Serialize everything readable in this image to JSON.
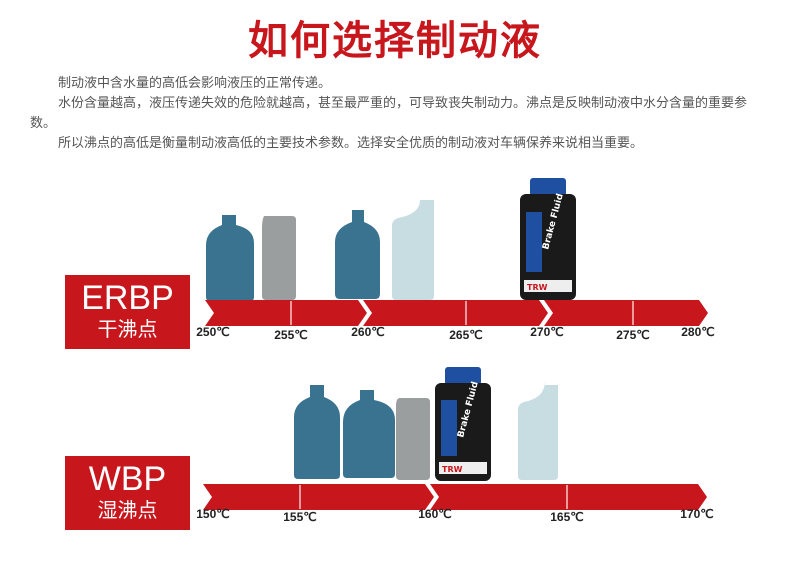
{
  "title": "如何选择制动液",
  "paragraphs": [
    "制动液中含水量的高低会影响液压的正常传递。",
    "水份含量越高，液压传递失效的危险就越高，甚至最严重的，可导致丧失制动力。沸点是反映制动液中水分含量的重要参数。",
    "所以沸点的高低是衡量制动液高低的主要技术参数。选择安全优质的制动液对车辆保养来说相当重要。"
  ],
  "erbp": {
    "label_en": "ERBP",
    "label_cn": "干沸点",
    "ticks": [
      "250℃",
      "255℃",
      "260℃",
      "265℃",
      "270℃",
      "275℃",
      "280℃"
    ]
  },
  "wbp": {
    "label_en": "WBP",
    "label_cn": "湿沸点",
    "ticks": [
      "150℃",
      "155℃",
      "160℃",
      "165℃",
      "170℃"
    ]
  },
  "product_label": "Brake Fluid",
  "brand": "TRW",
  "colors": {
    "accent": "#c8161d",
    "bottle_blue": "#3a7390",
    "bottle_gray": "#9a9e9f",
    "bottle_light": "#c7dde2",
    "product_black": "#1a1a1a",
    "cap_blue": "#1e4fa0"
  }
}
